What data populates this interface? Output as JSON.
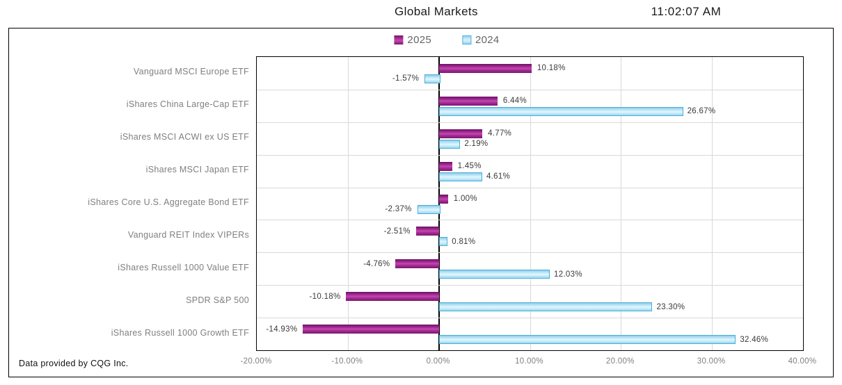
{
  "header": {
    "title": "Global Markets",
    "time": "11:02:07 AM"
  },
  "footer": {
    "text": "Data provided by CQG Inc."
  },
  "colors": {
    "series_2025": "#A32A99",
    "series_2024": "#ABE0F6",
    "series_2024_border": "#4BAED9",
    "gridline": "#D9D9D9",
    "axis_line": "#000000",
    "category_text": "#7F7F7F"
  },
  "chart_data": {
    "type": "bar",
    "orientation": "horizontal",
    "title": "Global Markets",
    "xlabel": "",
    "ylabel": "",
    "grid": "vertical gridlines + horizontal row separators",
    "legend_position": "top-center",
    "xlim": [
      -20,
      40
    ],
    "categories": [
      "Vanguard MSCI Europe ETF",
      "iShares China Large-Cap ETF",
      "iShares MSCI ACWI ex US ETF",
      "iShares MSCI Japan ETF",
      "iShares Core U.S. Aggregate Bond ETF",
      "Vanguard REIT Index VIPERs",
      "iShares Russell 1000 Value ETF",
      "SPDR S&P 500",
      "iShares Russell 1000 Growth ETF"
    ],
    "series": [
      {
        "name": "2025",
        "color": "#A32A99",
        "values": [
          10.18,
          6.44,
          4.77,
          1.45,
          1.0,
          -2.51,
          -4.76,
          -10.18,
          -14.93
        ],
        "labels": [
          "10.18%",
          "6.44%",
          "4.77%",
          "1.45%",
          "1.00%",
          "-2.51%",
          "-4.76%",
          "-10.18%",
          "-14.93%"
        ]
      },
      {
        "name": "2024",
        "color": "#ABE0F6",
        "values": [
          -1.57,
          26.67,
          2.19,
          4.61,
          -2.37,
          0.81,
          12.03,
          23.3,
          32.46
        ],
        "labels": [
          "-1.57%",
          "26.67%",
          "2.19%",
          "4.61%",
          "-2.37%",
          "0.81%",
          "12.03%",
          "23.30%",
          "32.46%"
        ]
      }
    ],
    "xticks": [
      {
        "value": -20,
        "label": "-20.00%"
      },
      {
        "value": -10,
        "label": "-10.00%"
      },
      {
        "value": 0,
        "label": "0.00%"
      },
      {
        "value": 10,
        "label": "10.00%"
      },
      {
        "value": 20,
        "label": "20.00%"
      },
      {
        "value": 30,
        "label": "30.00%"
      },
      {
        "value": 40,
        "label": "40.00%"
      }
    ]
  }
}
